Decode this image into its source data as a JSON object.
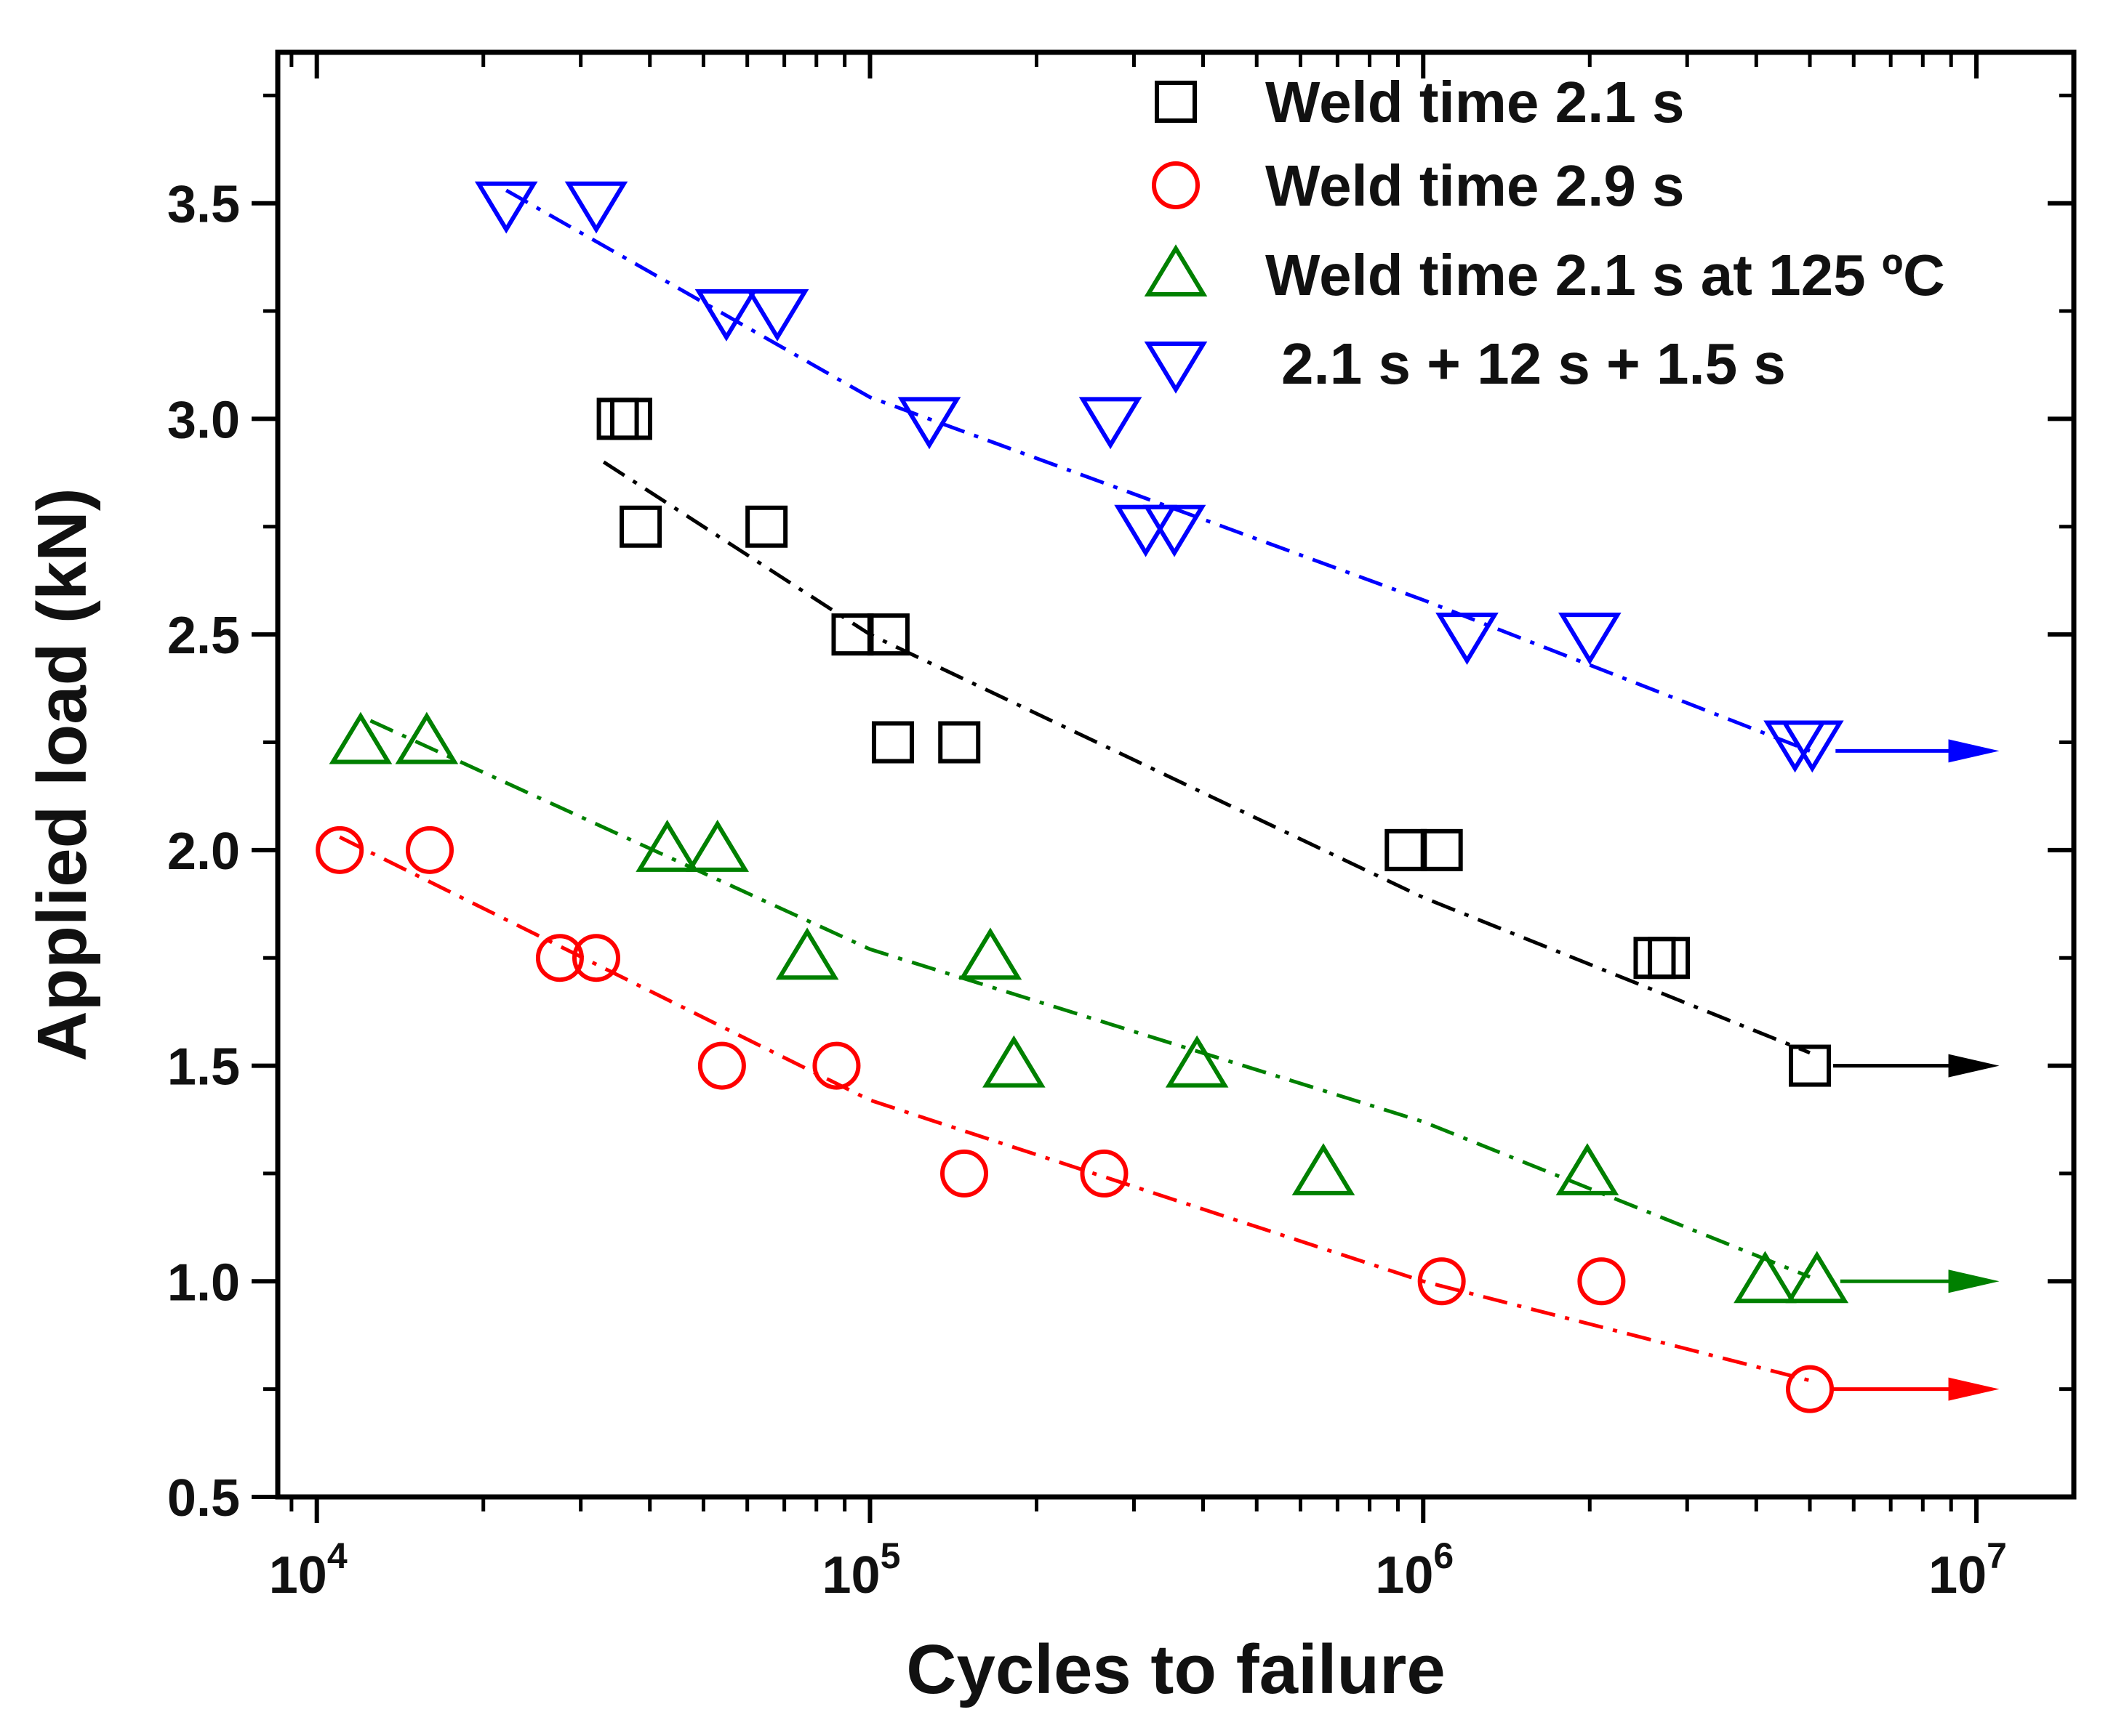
{
  "chart_data": {
    "type": "scatter",
    "xlabel": "Cycles to failure",
    "ylabel": "Applied load (kN)",
    "xscale": "log",
    "xlim": [
      8500,
      15000000
    ],
    "ylim": [
      0.5,
      3.85
    ],
    "x_major_ticks": [
      {
        "value": 10000,
        "mantissa": "10",
        "exponent": "4"
      },
      {
        "value": 100000,
        "mantissa": "10",
        "exponent": "5"
      },
      {
        "value": 1000000,
        "mantissa": "10",
        "exponent": "6"
      },
      {
        "value": 10000000,
        "mantissa": "10",
        "exponent": "7"
      }
    ],
    "y_ticks": [
      {
        "value": 0.5,
        "label": "0.5"
      },
      {
        "value": 1.0,
        "label": "1.0"
      },
      {
        "value": 1.5,
        "label": "1.5"
      },
      {
        "value": 2.0,
        "label": "2.0"
      },
      {
        "value": 2.5,
        "label": "2.5"
      },
      {
        "value": 3.0,
        "label": "3.0"
      },
      {
        "value": 3.5,
        "label": "3.5"
      }
    ],
    "legend_position": "top-right",
    "series": [
      {
        "name": "Weld time 2.1 s",
        "marker": "square",
        "color": "#000000",
        "points": [
          {
            "x": 35000,
            "y": 3.0
          },
          {
            "x": 37000,
            "y": 3.0
          },
          {
            "x": 38500,
            "y": 2.75
          },
          {
            "x": 65000,
            "y": 2.75
          },
          {
            "x": 93000,
            "y": 2.5
          },
          {
            "x": 108000,
            "y": 2.5
          },
          {
            "x": 110000,
            "y": 2.25
          },
          {
            "x": 145000,
            "y": 2.25
          },
          {
            "x": 930000,
            "y": 2.0
          },
          {
            "x": 1080000,
            "y": 2.0
          },
          {
            "x": 2620000,
            "y": 1.75
          },
          {
            "x": 2780000,
            "y": 1.75
          },
          {
            "x": 5000000,
            "y": 1.5
          }
        ],
        "fit_line": [
          {
            "x": 33000,
            "y": 2.9
          },
          {
            "x": 100000,
            "y": 2.5
          },
          {
            "x": 1000000,
            "y": 1.89
          },
          {
            "x": 5000000,
            "y": 1.53
          }
        ],
        "runout": {
          "x_start": 5000000,
          "x_end": 11000000,
          "y": 1.5
        }
      },
      {
        "name": "Weld time 2.9 s",
        "marker": "circle",
        "color": "#ff0000",
        "points": [
          {
            "x": 11000,
            "y": 2.0
          },
          {
            "x": 16000,
            "y": 2.0
          },
          {
            "x": 27500,
            "y": 1.75
          },
          {
            "x": 32000,
            "y": 1.75
          },
          {
            "x": 54000,
            "y": 1.5
          },
          {
            "x": 87000,
            "y": 1.5
          },
          {
            "x": 148000,
            "y": 1.25
          },
          {
            "x": 265000,
            "y": 1.25
          },
          {
            "x": 1080000,
            "y": 1.0
          },
          {
            "x": 2100000,
            "y": 1.0
          },
          {
            "x": 5000000,
            "y": 0.75
          }
        ],
        "fit_line": [
          {
            "x": 11000,
            "y": 2.03
          },
          {
            "x": 100000,
            "y": 1.42
          },
          {
            "x": 1000000,
            "y": 1.0
          },
          {
            "x": 5000000,
            "y": 0.77
          }
        ],
        "runout": {
          "x_start": 5000000,
          "x_end": 11000000,
          "y": 0.75
        }
      },
      {
        "name": "Weld time 2.1 s at 125 ºC",
        "marker": "triangle-up",
        "color": "#008000",
        "points": [
          {
            "x": 12000,
            "y": 2.25
          },
          {
            "x": 15800,
            "y": 2.25
          },
          {
            "x": 43000,
            "y": 2.0
          },
          {
            "x": 53000,
            "y": 2.0
          },
          {
            "x": 77000,
            "y": 1.75
          },
          {
            "x": 165000,
            "y": 1.75
          },
          {
            "x": 182000,
            "y": 1.5
          },
          {
            "x": 390000,
            "y": 1.5
          },
          {
            "x": 660000,
            "y": 1.25
          },
          {
            "x": 1980000,
            "y": 1.25
          },
          {
            "x": 4150000,
            "y": 1.0
          },
          {
            "x": 5150000,
            "y": 1.0
          }
        ],
        "fit_line": [
          {
            "x": 12500,
            "y": 2.3
          },
          {
            "x": 100000,
            "y": 1.77
          },
          {
            "x": 1000000,
            "y": 1.37
          },
          {
            "x": 5000000,
            "y": 1.01
          }
        ],
        "runout": {
          "x_start": 5150000,
          "x_end": 11000000,
          "y": 1.0
        }
      },
      {
        "name": "2.1 s + 12 s + 1.5 s",
        "marker": "triangle-down",
        "color": "#0000ff",
        "points": [
          {
            "x": 22000,
            "y": 3.5
          },
          {
            "x": 32000,
            "y": 3.5
          },
          {
            "x": 55000,
            "y": 3.25
          },
          {
            "x": 68000,
            "y": 3.25
          },
          {
            "x": 128000,
            "y": 3.0
          },
          {
            "x": 272000,
            "y": 3.0
          },
          {
            "x": 315000,
            "y": 2.75
          },
          {
            "x": 355000,
            "y": 2.75
          },
          {
            "x": 1200000,
            "y": 2.5
          },
          {
            "x": 2000000,
            "y": 2.5
          },
          {
            "x": 4700000,
            "y": 2.25
          },
          {
            "x": 5050000,
            "y": 2.25
          }
        ],
        "fit_line": [
          {
            "x": 22000,
            "y": 3.53
          },
          {
            "x": 100000,
            "y": 3.05
          },
          {
            "x": 1000000,
            "y": 2.58
          },
          {
            "x": 5000000,
            "y": 2.23
          }
        ],
        "runout": {
          "x_start": 5050000,
          "x_end": 11000000,
          "y": 2.23
        }
      }
    ]
  }
}
